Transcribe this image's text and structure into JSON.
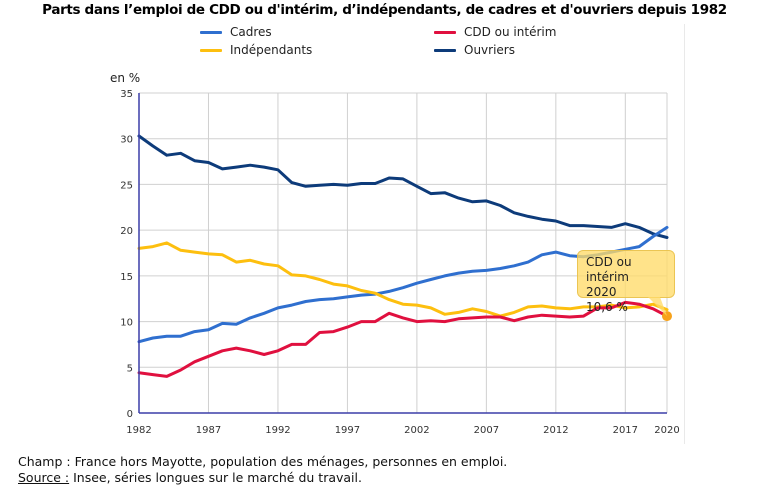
{
  "chart_data": {
    "type": "line",
    "title": "Parts dans l’emploi de CDD ou d'intérim, d’indépendants, de cadres et d'ouvriers depuis 1982",
    "ylabel": "en %",
    "xlabel": "",
    "ylim": [
      0,
      35
    ],
    "yticks": [
      "0",
      "5",
      "10",
      "15",
      "20",
      "25",
      "30",
      "35"
    ],
    "ytick_values": [
      0,
      5,
      10,
      15,
      20,
      25,
      30,
      35
    ],
    "xlim": [
      1982,
      2020
    ],
    "xticks": [
      "1982",
      "1987",
      "1992",
      "1997",
      "2002",
      "2007",
      "2012",
      "2017",
      "2020"
    ],
    "xtick_values": [
      1982,
      1987,
      1992,
      1997,
      2002,
      2007,
      2012,
      2017,
      2020
    ],
    "grid": true,
    "legend_position": "top-center",
    "x": [
      1982,
      1983,
      1984,
      1985,
      1986,
      1987,
      1988,
      1989,
      1990,
      1991,
      1992,
      1993,
      1994,
      1995,
      1996,
      1997,
      1998,
      1999,
      2000,
      2001,
      2002,
      2003,
      2004,
      2005,
      2006,
      2007,
      2008,
      2009,
      2010,
      2011,
      2012,
      2013,
      2014,
      2015,
      2016,
      2017,
      2018,
      2019,
      2020
    ],
    "series": [
      {
        "name": "Cadres",
        "color": "#2f6fcf",
        "values": [
          7.8,
          8.2,
          8.4,
          8.4,
          8.9,
          9.1,
          9.8,
          9.7,
          10.4,
          10.9,
          11.5,
          11.8,
          12.2,
          12.4,
          12.5,
          12.7,
          12.9,
          13.0,
          13.3,
          13.7,
          14.2,
          14.6,
          15.0,
          15.3,
          15.5,
          15.6,
          15.8,
          16.1,
          16.5,
          17.3,
          17.6,
          17.2,
          17.1,
          17.3,
          17.6,
          17.9,
          18.2,
          19.3,
          20.3
        ]
      },
      {
        "name": "CDD ou intérim",
        "color": "#e0103f",
        "values": [
          4.4,
          4.2,
          4.0,
          4.7,
          5.6,
          6.2,
          6.8,
          7.1,
          6.8,
          6.4,
          6.8,
          7.5,
          7.5,
          8.8,
          8.9,
          9.4,
          10.0,
          10.0,
          10.9,
          10.4,
          10.0,
          10.1,
          10.0,
          10.3,
          10.4,
          10.5,
          10.5,
          10.1,
          10.5,
          10.7,
          10.6,
          10.5,
          10.6,
          11.5,
          11.5,
          12.1,
          11.9,
          11.4,
          10.6
        ]
      },
      {
        "name": "Indépendants",
        "color": "#fdbf0f",
        "values": [
          18.0,
          18.2,
          18.6,
          17.8,
          17.6,
          17.4,
          17.3,
          16.5,
          16.7,
          16.3,
          16.1,
          15.1,
          15.0,
          14.6,
          14.1,
          13.9,
          13.4,
          13.1,
          12.4,
          11.9,
          11.8,
          11.5,
          10.8,
          11.0,
          11.4,
          11.1,
          10.6,
          11.0,
          11.6,
          11.7,
          11.5,
          11.4,
          11.6,
          11.6,
          11.8,
          11.5,
          11.6,
          11.9,
          11.3
        ]
      },
      {
        "name": "Ouvriers",
        "color": "#0d3b7a",
        "values": [
          30.3,
          29.2,
          28.2,
          28.4,
          27.6,
          27.4,
          26.7,
          26.9,
          27.1,
          26.9,
          26.6,
          25.2,
          24.8,
          24.9,
          25.0,
          24.9,
          25.1,
          25.1,
          25.7,
          25.6,
          24.8,
          24.0,
          24.1,
          23.5,
          23.1,
          23.2,
          22.7,
          21.9,
          21.5,
          21.2,
          21.0,
          20.5,
          20.5,
          20.4,
          20.3,
          20.7,
          20.3,
          19.6,
          19.2
        ]
      }
    ],
    "annotation": {
      "series": "CDD ou intérim",
      "year": "2020",
      "value_label": "10,6 %",
      "value": 10.6,
      "marker_color": "#f7a21b"
    }
  },
  "legend": [
    {
      "label": "Cadres",
      "color": "#2f6fcf"
    },
    {
      "label": "CDD ou intérim",
      "color": "#e0103f"
    },
    {
      "label": "Indépendants",
      "color": "#fdbf0f"
    },
    {
      "label": "Ouvriers",
      "color": "#0d3b7a"
    }
  ],
  "tooltip": {
    "line1": "CDD ou intérim",
    "line2": "2020",
    "line3": "10,6 %"
  },
  "notes": {
    "champ": "Champ : France hors Mayotte, population des ménages, personnes en emploi.",
    "source_label": "Source :",
    "source_text": " Insee, séries longues sur le marché du travail."
  },
  "colors": {
    "grid": "#d0d0d0",
    "axis": "#3b3fa8"
  }
}
